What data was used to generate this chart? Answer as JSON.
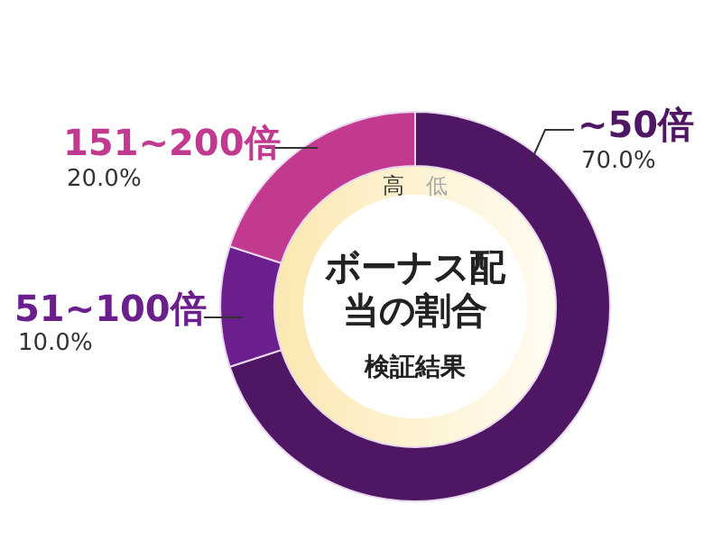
{
  "chart_data": {
    "type": "donut",
    "title": "ボーナス配当の割合",
    "subtitle": "検証結果",
    "categories": [
      "~50倍",
      "51~100倍",
      "151~200倍"
    ],
    "values": [
      70,
      10,
      20
    ],
    "colors": [
      "#4f1763",
      "#6b1f8c",
      "#c23a90"
    ],
    "value_labels": [
      "70.0%",
      "10.0%",
      "20.0%"
    ],
    "annotations": [
      "高",
      "低"
    ]
  }
}
